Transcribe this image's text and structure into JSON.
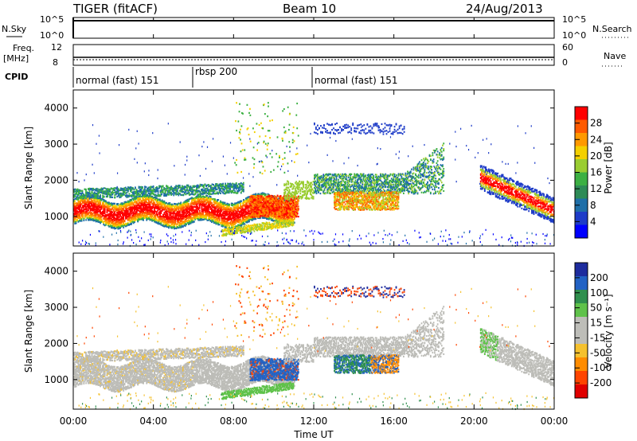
{
  "header": {
    "radar": "TIGER (fitACF)",
    "beam": "Beam 10",
    "date": "24/Aug/2013"
  },
  "status_panels": {
    "nsky_label": "N.Sky",
    "nsky_ticks": [
      "10^5",
      "10^0"
    ],
    "nsearch_label": "N.Search",
    "nsearch_ticks": [
      "10^5",
      "10^0"
    ],
    "freq_label_top": "Freq.",
    "freq_label_bottom": "[MHz]",
    "freq_ticks": [
      "12",
      "8"
    ],
    "nave_label": "Nave",
    "nave_ticks": [
      "60",
      "0"
    ],
    "cpid_label": "CPID",
    "cpid_segments": [
      {
        "label": "normal (fast) 151",
        "start_hour": 0,
        "end_hour": 6
      },
      {
        "label": "rbsp 200",
        "start_hour": 6,
        "end_hour": 12
      },
      {
        "label": "normal (fast) 151",
        "start_hour": 12,
        "end_hour": 24
      }
    ]
  },
  "power_colorbar": {
    "label": "Power [dB]",
    "ticks": [
      "28",
      "24",
      "20",
      "16",
      "12",
      "8",
      "4"
    ],
    "colors": [
      "#ff0000",
      "#ff5a00",
      "#ff9900",
      "#f4d000",
      "#9acd32",
      "#3cb043",
      "#2e8b57",
      "#1f6fa8",
      "#1e3cc8",
      "#0000ff"
    ]
  },
  "velocity_colorbar": {
    "label": "Velocity [m s⁻¹]",
    "ticks": [
      "200",
      "100",
      "50",
      "15",
      "-15",
      "-50",
      "-100",
      "-200"
    ],
    "colors": [
      "#1e2c9e",
      "#2262c4",
      "#2f8f4e",
      "#5fc24a",
      "#bdbdb8",
      "#bdbdb8",
      "#f5c12e",
      "#ff8c00",
      "#ff4500",
      "#e00000"
    ]
  },
  "axes": {
    "y_label": "Slant Range [km]",
    "y_ticks": [
      "4000",
      "3000",
      "2000",
      "1000"
    ],
    "x_label": "Time UT",
    "x_ticks": [
      "00:00",
      "04:00",
      "08:00",
      "12:00",
      "16:00",
      "20:00",
      "00:00"
    ]
  },
  "chart_data": [
    {
      "type": "heatmap",
      "title": "Power",
      "x": "time UT (hours 0-24)",
      "y": "slant range (km)",
      "xlim": [
        0,
        24
      ],
      "ylim": [
        180,
        4500
      ],
      "features": [
        {
          "name": "main band",
          "time_hours": [
            0,
            11
          ],
          "range_km": [
            800,
            1500
          ],
          "power_db": [
            20,
            30
          ]
        },
        {
          "name": "afternoon band",
          "time_hours": [
            12,
            18.5
          ],
          "range_km": [
            1300,
            2300
          ],
          "power_db": [
            8,
            26
          ]
        },
        {
          "name": "evening band",
          "time_hours": [
            20.3,
            24
          ],
          "range_km": [
            900,
            2200
          ],
          "power_db": [
            12,
            28
          ]
        }
      ]
    },
    {
      "type": "heatmap",
      "title": "Velocity",
      "x": "time UT (hours 0-24)",
      "y": "slant range (km)",
      "xlim": [
        0,
        24
      ],
      "ylim": [
        180,
        4500
      ],
      "features": [
        {
          "name": "ground scatter band",
          "time_hours": [
            0,
            24
          ],
          "range_km": [
            900,
            2200
          ],
          "velocity_ms": [
            -15,
            15
          ]
        },
        {
          "name": "toward radar patch",
          "time_hours": [
            9,
            11
          ],
          "range_km": [
            1000,
            1600
          ],
          "velocity_ms": [
            100,
            250
          ]
        },
        {
          "name": "afternoon patch",
          "time_hours": [
            13,
            16
          ],
          "range_km": [
            1200,
            1700
          ],
          "velocity_ms": [
            -100,
            200
          ]
        }
      ]
    }
  ]
}
